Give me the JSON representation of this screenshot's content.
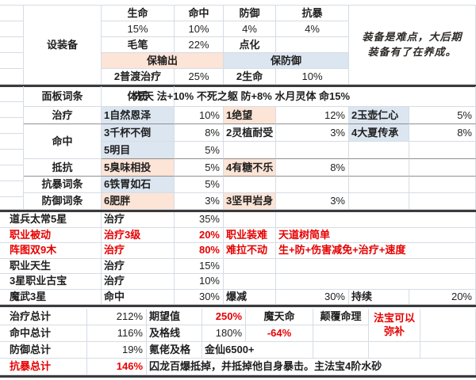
{
  "colors": {
    "accent_red": "#e60000",
    "highlight_peach": "#fce4d6",
    "highlight_blue": "#dce6f1",
    "gridline": "#d6dce4",
    "section_border": "#3b3b3b"
  },
  "top": {
    "group_label": "设装备",
    "headers": [
      "生命",
      "命中",
      "防御",
      "抗暴"
    ],
    "percents": [
      "15%",
      "10%",
      "4%",
      "4%"
    ],
    "row3": {
      "c1": "毛笔",
      "v1": "22%",
      "c2": "点化"
    },
    "band_output": "保输出",
    "band_defense": "保防御",
    "row5": {
      "c1": "2普渡治疗",
      "v1": "25%",
      "c2": "2生命",
      "v2": "10%"
    },
    "note": {
      "line1": "装备是难点，大后期",
      "line2": "装备有了在养成。"
    }
  },
  "panel": {
    "header_label": "面板词条",
    "header_name": "体质",
    "header_long": "先天 法+10% 不死之躯 防+8% 水月灵体 命15%",
    "rows": [
      {
        "label": "治疗",
        "n1": "1自然恩泽",
        "v1": "10%",
        "n2": "1绝望",
        "v2": "12%",
        "n3": "2玉壶仁心",
        "v3": "5%"
      },
      {
        "label": "命中",
        "n1": "3千杯不倒",
        "v1": "8%",
        "n2": "2灵植耐受",
        "v2": "3%",
        "n3": "4大夏传承",
        "v3": "8%"
      },
      {
        "label": "",
        "n1": "5明目",
        "v1": "5%"
      },
      {
        "label": "抵抗",
        "n1": "5臭味相投",
        "v1": "5%",
        "n2": "4有糖不乐",
        "v2": "8%"
      },
      {
        "label": "抗暴词条",
        "n1": "6铁胃如石",
        "v1": "5%"
      },
      {
        "label": "防御词条",
        "n1": "6肥胖",
        "v1": "3%",
        "n2": "3坚甲岩身",
        "v2": "3%"
      }
    ]
  },
  "sources": {
    "rows": [
      {
        "label": "道兵太常5星",
        "stat": "治疗",
        "value": "35%"
      },
      {
        "label": "职业被动",
        "stat": "治疗3级",
        "value": "20%",
        "note_a": "职业装难",
        "note_b": "天道树简单"
      },
      {
        "label": "阵图双9木",
        "stat": "治疗",
        "value": "80%",
        "note_a": "难拉不动",
        "note_b": "生+防+伤害减免+治疗+速度"
      },
      {
        "label": "职业天生",
        "stat": "治疗",
        "value": "15%"
      },
      {
        "label": "3星职业古宝",
        "stat": "治疗",
        "value": "10%"
      },
      {
        "label": "魔武3星",
        "stat": "命中",
        "value": "30%",
        "extra1_label": "爆减",
        "extra1_value": "30%",
        "extra2_label": "持续",
        "extra2_value": "20%"
      }
    ]
  },
  "totals": {
    "rows": [
      {
        "label": "治疗总计",
        "value": "212%",
        "metric": "期望值",
        "metric_value": "250%",
        "col5": "魔天命",
        "col6": "颠覆命理"
      },
      {
        "label": "命中总计",
        "value": "116%",
        "metric": "及格线",
        "metric_value": "180%",
        "col5": "-64%"
      },
      {
        "label": "防御总计",
        "value": "19%",
        "metric": "氪佬及格",
        "metric_value": "金仙6500+"
      },
      {
        "label": "抗暴总计",
        "value": "146%",
        "metric": "囚龙百爆抵掉，并抵掉他自身暴击。主法宝4阶水砂"
      }
    ],
    "note_line1": "法宝可以",
    "note_line2": "弥补"
  }
}
